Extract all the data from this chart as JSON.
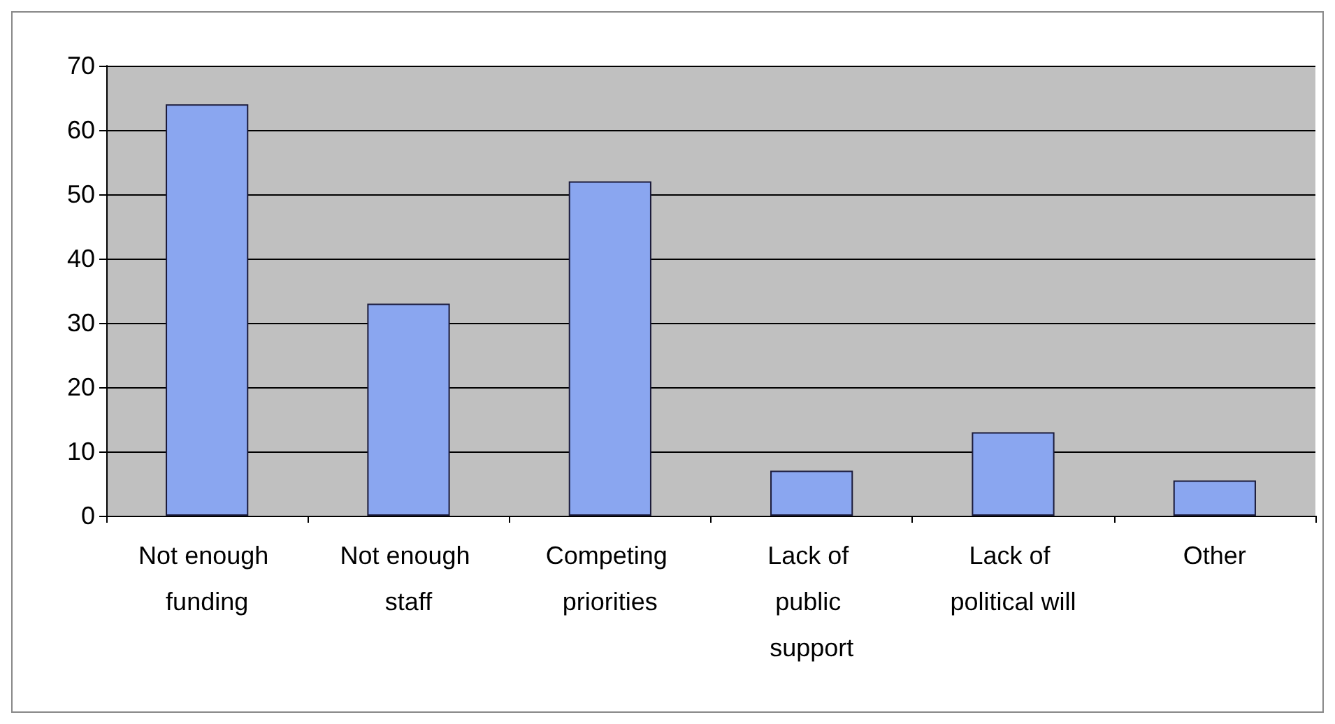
{
  "chart_data": {
    "type": "bar",
    "categories": [
      "Not enough funding",
      "Not enough staff",
      "Competing priorities",
      "Lack of public support",
      "Lack of political will",
      "Other"
    ],
    "values": [
      64,
      33,
      52,
      7,
      13,
      5.5
    ],
    "color": "#8aa6f0",
    "ylim": [
      0,
      70
    ],
    "yticks": [
      0,
      10,
      20,
      30,
      40,
      50,
      60,
      70
    ],
    "grid": "y"
  }
}
